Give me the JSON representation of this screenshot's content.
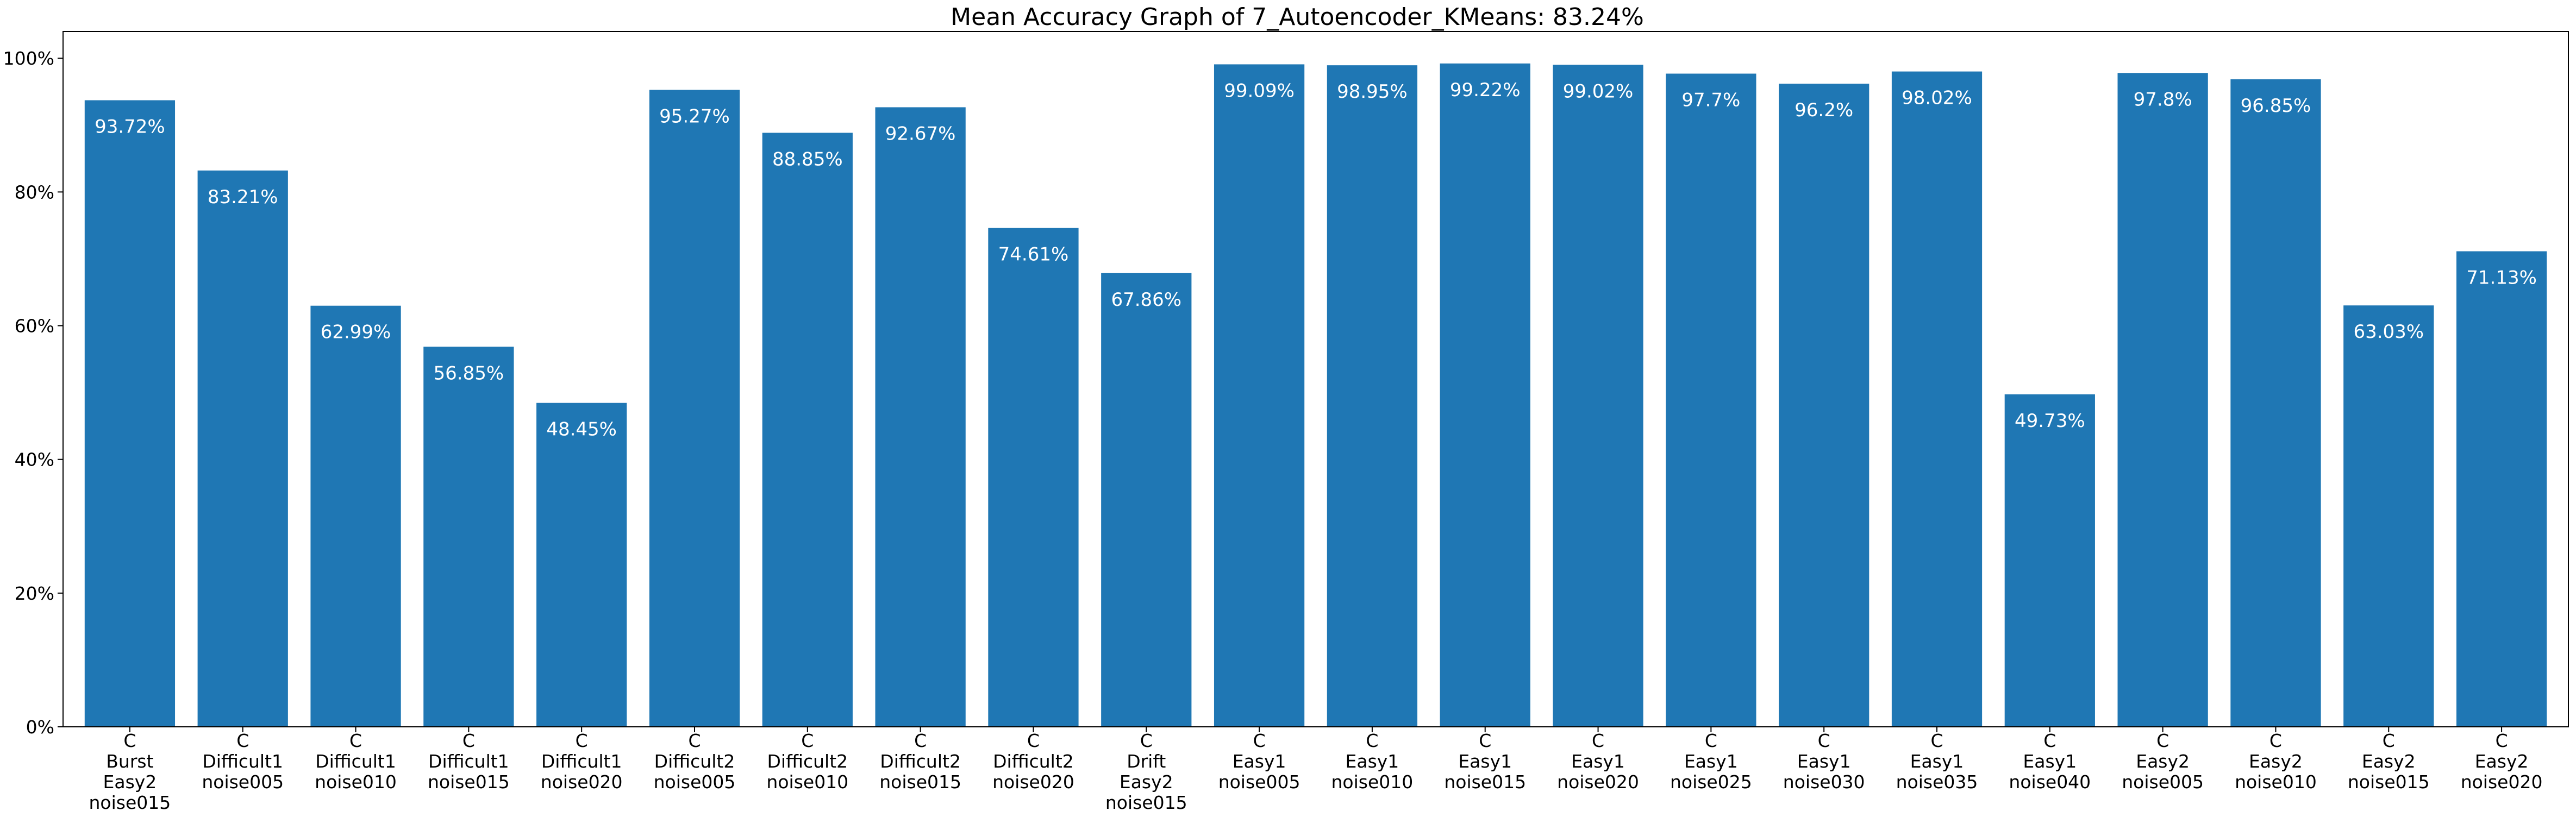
{
  "chart_data": {
    "type": "bar",
    "title": "Mean Accuracy Graph of 7_Autoencoder_KMeans: 83.24%",
    "xlabel": "",
    "ylabel": "",
    "ylim": [
      0,
      104
    ],
    "yticks": [
      0,
      20,
      40,
      60,
      80,
      100
    ],
    "ytick_labels": [
      "0%",
      "20%",
      "40%",
      "60%",
      "80%",
      "100%"
    ],
    "grid": false,
    "legend": "none",
    "bar_color": "#1f77b4",
    "label_color": "#ffffff",
    "categories": [
      [
        "C",
        "Burst",
        "Easy2",
        "noise015"
      ],
      [
        "C",
        "Difficult1",
        "noise005"
      ],
      [
        "C",
        "Difficult1",
        "noise010"
      ],
      [
        "C",
        "Difficult1",
        "noise015"
      ],
      [
        "C",
        "Difficult1",
        "noise020"
      ],
      [
        "C",
        "Difficult2",
        "noise005"
      ],
      [
        "C",
        "Difficult2",
        "noise010"
      ],
      [
        "C",
        "Difficult2",
        "noise015"
      ],
      [
        "C",
        "Difficult2",
        "noise020"
      ],
      [
        "C",
        "Drift",
        "Easy2",
        "noise015"
      ],
      [
        "C",
        "Easy1",
        "noise005"
      ],
      [
        "C",
        "Easy1",
        "noise010"
      ],
      [
        "C",
        "Easy1",
        "noise015"
      ],
      [
        "C",
        "Easy1",
        "noise020"
      ],
      [
        "C",
        "Easy1",
        "noise025"
      ],
      [
        "C",
        "Easy1",
        "noise030"
      ],
      [
        "C",
        "Easy1",
        "noise035"
      ],
      [
        "C",
        "Easy1",
        "noise040"
      ],
      [
        "C",
        "Easy2",
        "noise005"
      ],
      [
        "C",
        "Easy2",
        "noise010"
      ],
      [
        "C",
        "Easy2",
        "noise015"
      ],
      [
        "C",
        "Easy2",
        "noise020"
      ]
    ],
    "values": [
      93.72,
      83.21,
      62.99,
      56.85,
      48.45,
      95.27,
      88.85,
      92.67,
      74.61,
      67.86,
      99.09,
      98.95,
      99.22,
      99.02,
      97.7,
      96.2,
      98.02,
      49.73,
      97.8,
      96.85,
      63.03,
      71.13
    ],
    "data_labels": [
      "93.72%",
      "83.21%",
      "62.99%",
      "56.85%",
      "48.45%",
      "95.27%",
      "88.85%",
      "92.67%",
      "74.61%",
      "67.86%",
      "99.09%",
      "98.95%",
      "99.22%",
      "99.02%",
      "97.7%",
      "96.2%",
      "98.02%",
      "49.73%",
      "97.8%",
      "96.85%",
      "63.03%",
      "71.13%"
    ]
  }
}
